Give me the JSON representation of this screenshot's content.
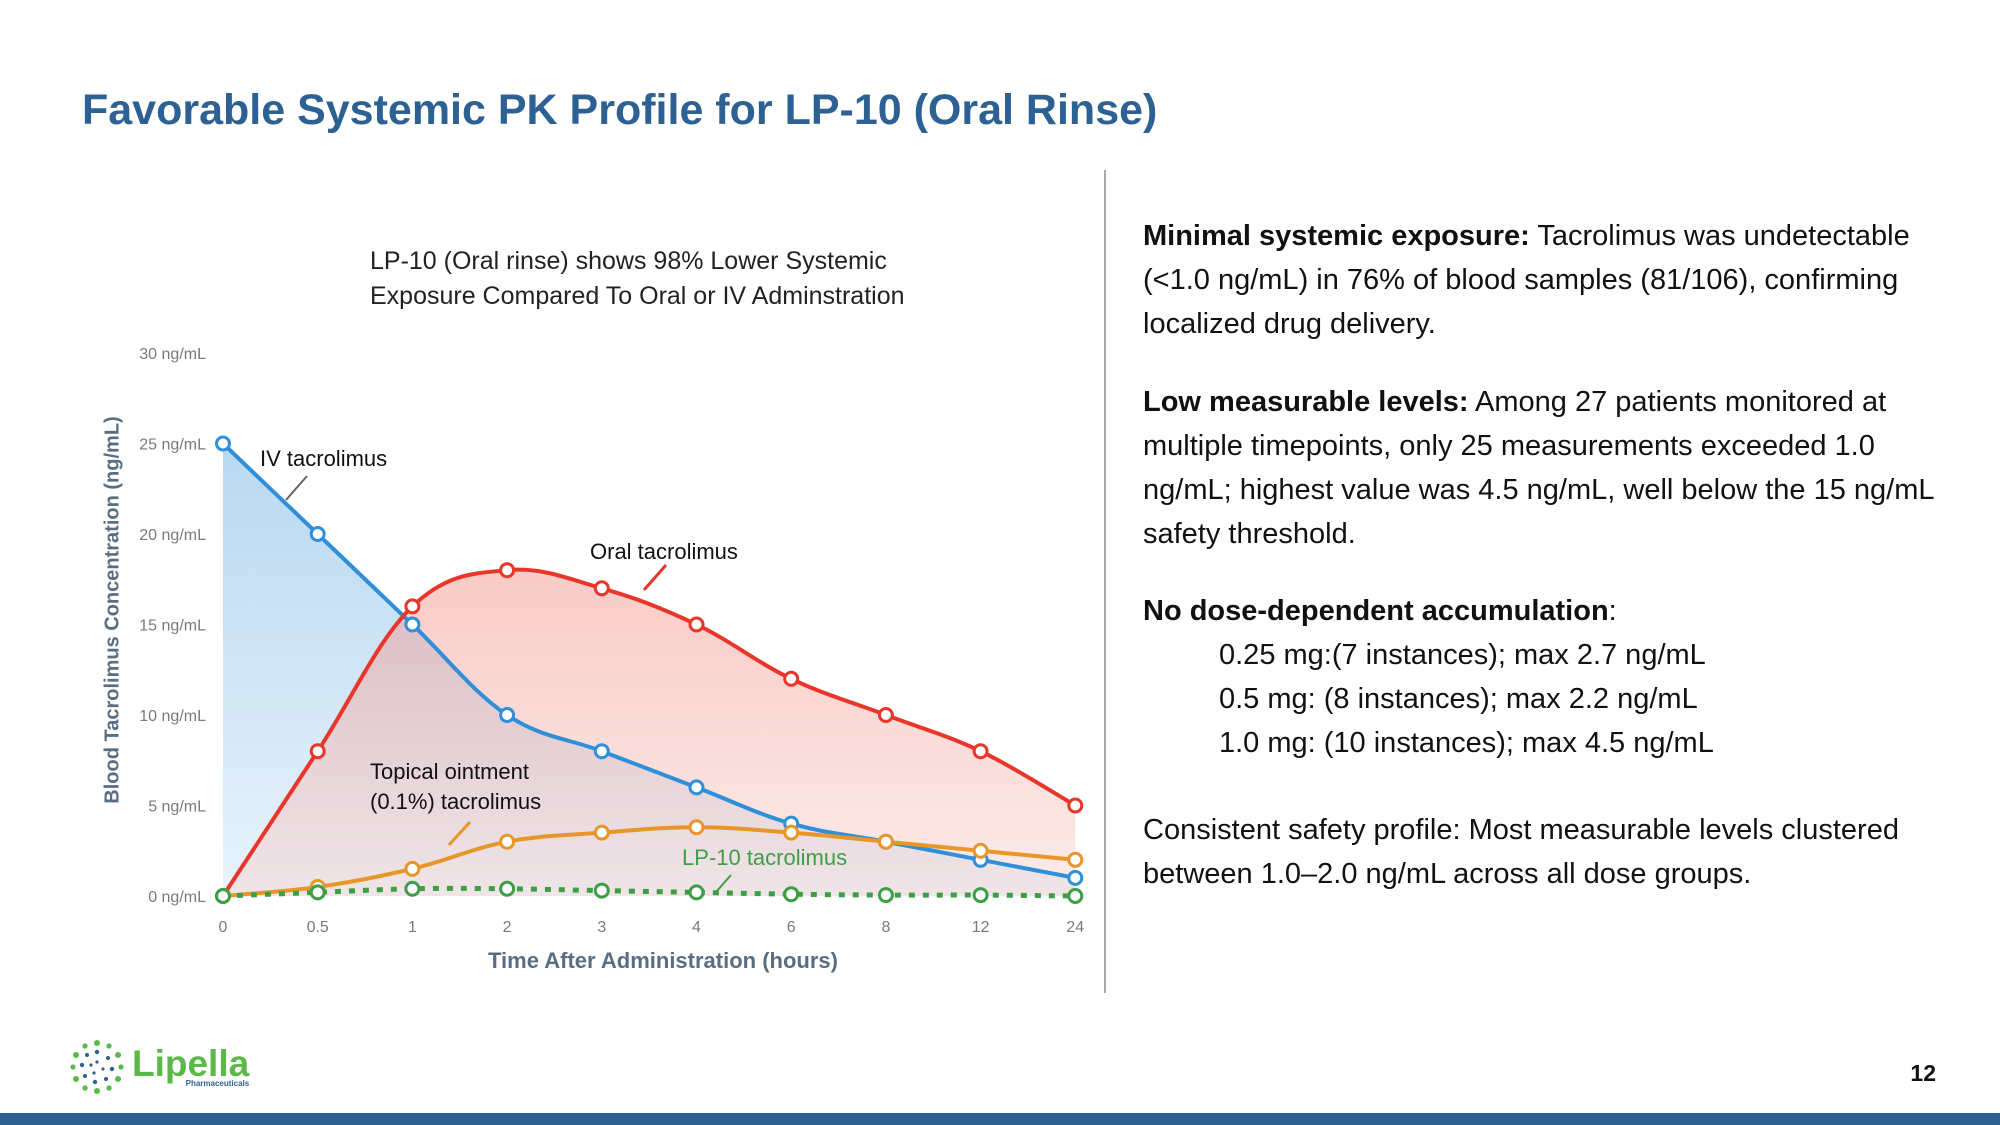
{
  "title": "Favorable Systemic PK Profile for LP-10 (Oral Rinse)",
  "callout": {
    "line1": "LP-10 (Oral rinse) shows 98% Lower Systemic",
    "line2": "Exposure Compared To Oral or IV Adminstration"
  },
  "colors": {
    "title": "#2E6193",
    "iv": "#2F8FD8",
    "oral": "#E8362B",
    "topical": "#E8962A",
    "lp10": "#3E9E45",
    "axis_text": "#7a7a7a",
    "axis_title": "#5a6e82"
  },
  "chart_data": {
    "type": "line",
    "title": "",
    "xlabel": "Time After Administration (hours)",
    "ylabel": "Blood Tacrolimus Concentration (ng/mL)",
    "categories": [
      "0",
      "0.5",
      "1",
      "2",
      "3",
      "4",
      "6",
      "8",
      "12",
      "24"
    ],
    "yticks": [
      "0 ng/mL",
      "5 ng/mL",
      "10 ng/mL",
      "15 ng/mL",
      "20 ng/mL",
      "25 ng/mL",
      "30 ng/mL"
    ],
    "ylim": [
      0,
      30
    ],
    "series": [
      {
        "name": "IV tacrolimus",
        "values": [
          25,
          20,
          15,
          10,
          8,
          6,
          4,
          3,
          2,
          1
        ]
      },
      {
        "name": "Oral tacrolimus",
        "values": [
          0,
          8,
          16,
          18,
          17,
          15,
          12,
          10,
          8,
          5
        ]
      },
      {
        "name": "Topical ointment (0.1%) tacrolimus",
        "label_line1": "Topical ointment",
        "label_line2": "(0.1%) tacrolimus",
        "values": [
          0,
          0.5,
          1.5,
          3.0,
          3.5,
          3.8,
          3.5,
          3.0,
          2.5,
          2.0
        ]
      },
      {
        "name": "LP-10 tacrolimus",
        "values": [
          0,
          0.2,
          0.4,
          0.4,
          0.3,
          0.2,
          0.1,
          0.05,
          0.05,
          0.0
        ]
      }
    ]
  },
  "right_panel": {
    "p1_bold": "Minimal systemic exposure:",
    "p1_text": " Tacrolimus was undetectable (<1.0 ng/mL) in 76% of blood samples (81/106), confirming localized drug delivery.",
    "p2_bold": "Low measurable levels:",
    "p2_text": " Among 27 patients monitored at multiple timepoints, only 25 measurements exceeded 1.0 ng/mL; highest value was 4.5 ng/mL, well below the 15 ng/mL safety threshold.",
    "p3_bold": "No dose-dependent accumulation",
    "p3_colon": ":",
    "dose1": "0.25 mg:(7 instances); max 2.7 ng/mL",
    "dose2": "0.5 mg: (8 instances); max 2.2 ng/mL",
    "dose3": "1.0 mg: (10 instances); max 4.5 ng/mL",
    "p4_text": "Consistent safety profile: Most measurable levels clustered between 1.0–2.0 ng/mL across all dose groups."
  },
  "logo": {
    "name": "Lipella",
    "sub": "Pharmaceuticals"
  },
  "page_number": "12"
}
